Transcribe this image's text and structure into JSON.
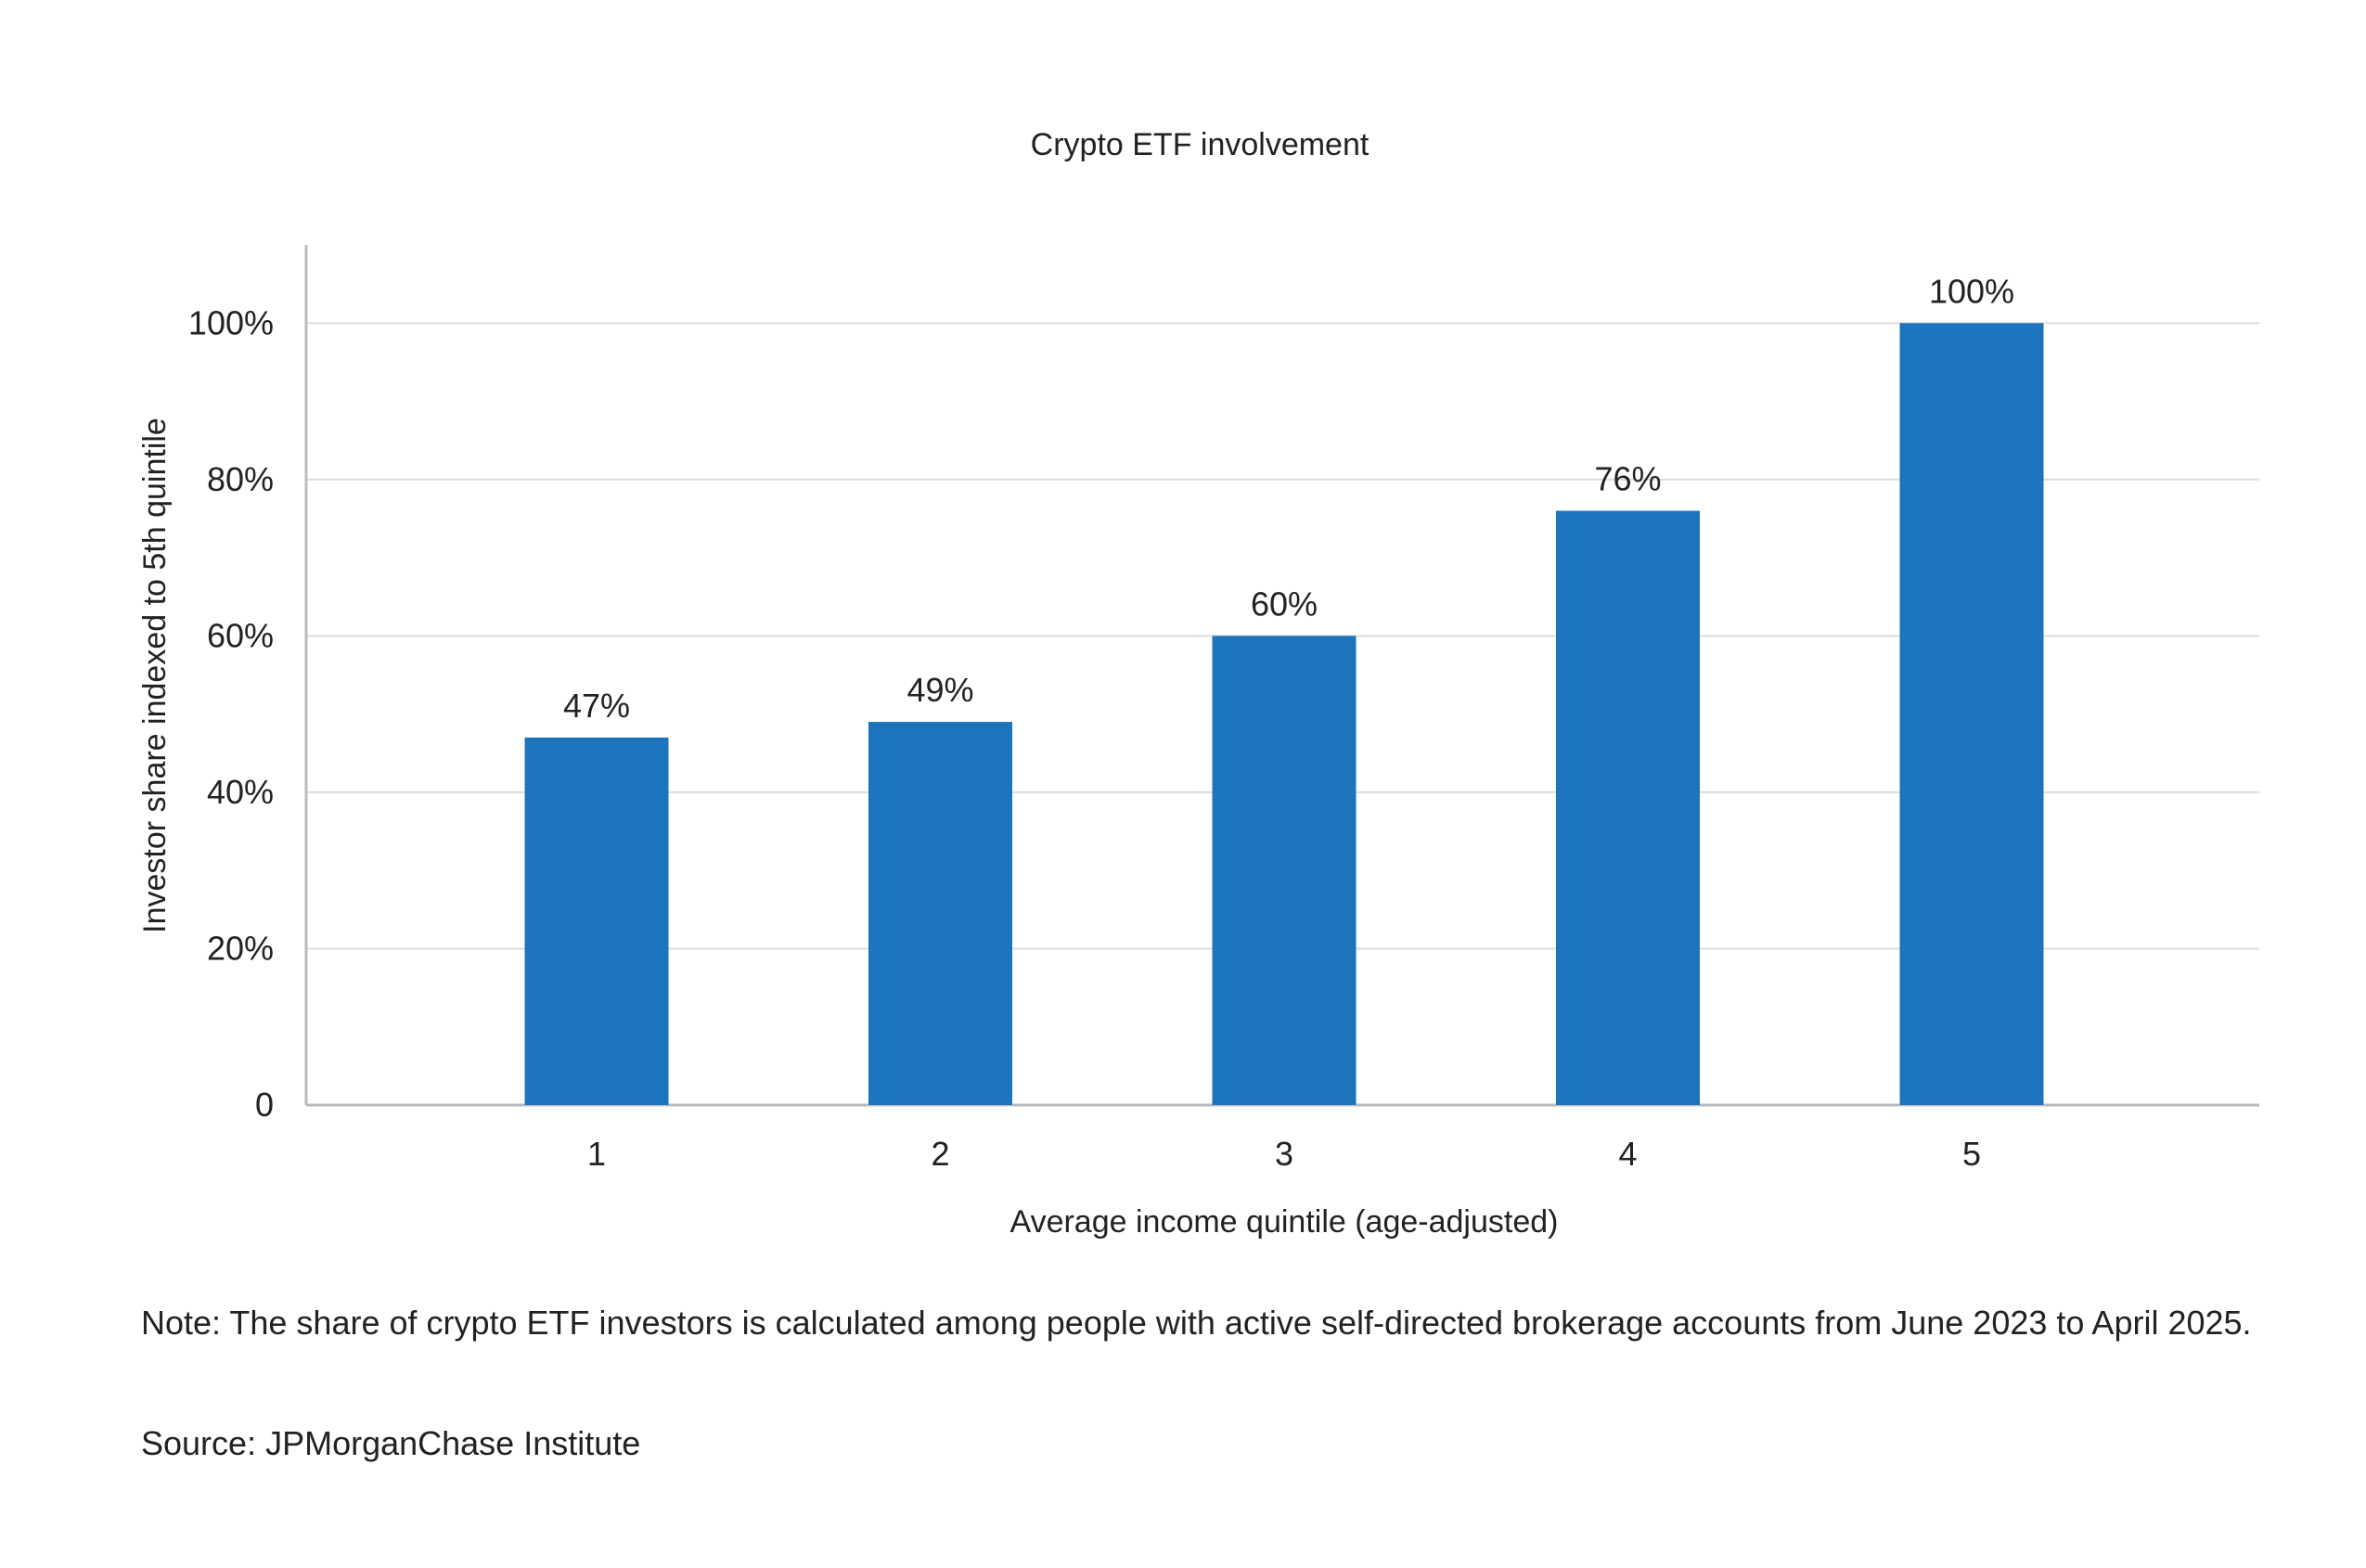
{
  "chart_data": {
    "type": "bar",
    "title": "Crypto ETF involvement",
    "x_label": "Average income quintile (age-adjusted)",
    "y_label": "Investor share indexed to 5th quintile",
    "categories": [
      "1",
      "2",
      "3",
      "4",
      "5"
    ],
    "values": [
      47,
      49,
      60,
      76,
      100
    ],
    "value_labels": [
      "47%",
      "49%",
      "60%",
      "76%",
      "100%"
    ],
    "color": "#1c75bc",
    "ylim": [
      0,
      110
    ],
    "yticks": [
      0,
      {
        "value": 20,
        "label": "20%"
      },
      {
        "value": 40,
        "label": "40%"
      },
      {
        "value": 60,
        "label": "60%"
      },
      {
        "value": 80,
        "label": "80%"
      },
      {
        "value": 100,
        "label": "100%"
      }
    ],
    "grid": true
  },
  "note": "Note: The share of crypto ETF investors is calculated among people with active self-directed brokerage accounts from June 2023 to April 2025.",
  "source": "Source: JPMorganChase Institute"
}
